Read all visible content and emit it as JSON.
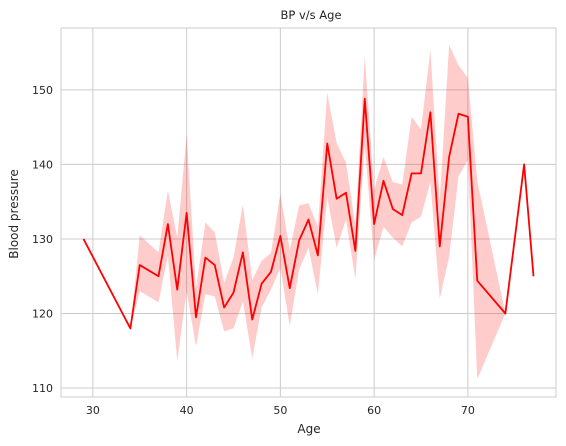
{
  "chart_data": {
    "type": "line",
    "title": "BP v/s Age",
    "xlabel": "Age",
    "ylabel": "Blood pressure",
    "xlim": [
      26.6,
      79.4
    ],
    "ylim": [
      108.8,
      158.3
    ],
    "xticks": [
      30,
      40,
      50,
      60,
      70
    ],
    "yticks": [
      110,
      120,
      130,
      140,
      150
    ],
    "grid": true,
    "line_color": "#ff0000",
    "band_color": "#ff0000",
    "band_opacity": 0.2,
    "series": [
      {
        "x": [
          29,
          34,
          35,
          37,
          38,
          39,
          40,
          41,
          42,
          43,
          44,
          45,
          46,
          47,
          48,
          49,
          50,
          51,
          52,
          53,
          54,
          55,
          56,
          57,
          58,
          59,
          60,
          61,
          62,
          63,
          64,
          65,
          66,
          67,
          68,
          69,
          70,
          71,
          74,
          76,
          77
        ],
        "y": [
          130,
          118,
          126.5,
          125,
          132,
          123.2,
          133.5,
          119.5,
          127.5,
          126.5,
          120.8,
          122.8,
          128.2,
          119.2,
          124,
          125.6,
          130.4,
          123.4,
          129.8,
          132.6,
          127.8,
          142.8,
          135.4,
          136.2,
          128.4,
          148.8,
          132,
          137.8,
          134,
          133.2,
          138.8,
          138.8,
          147,
          129,
          141,
          146.8,
          146.4,
          124.4,
          120,
          140,
          125
        ],
        "ci_low": [
          130,
          118,
          123,
          121.5,
          127.8,
          113.6,
          123,
          115.6,
          122.6,
          122.3,
          117.6,
          118,
          121.6,
          114,
          120.8,
          123.2,
          126.1,
          118.3,
          125.9,
          128.8,
          122.6,
          135.6,
          128.8,
          132.6,
          124.6,
          142.6,
          127.2,
          131.6,
          130.2,
          129,
          132.2,
          133,
          137.6,
          122,
          127.6,
          138.4,
          140.6,
          111.2,
          120,
          140,
          125
        ],
        "ci_high": [
          130,
          118,
          130.5,
          128.2,
          136.5,
          130.2,
          144,
          123.4,
          132.2,
          130.9,
          124.1,
          127.5,
          134.6,
          124.5,
          127.1,
          128.1,
          136.1,
          128.5,
          134.5,
          134.8,
          131.6,
          149.6,
          142.9,
          140.2,
          131.8,
          154.6,
          136.6,
          141,
          137.6,
          137.3,
          146.4,
          144.7,
          155.4,
          135.3,
          156,
          153.3,
          151.6,
          137.8,
          120,
          140,
          125
        ]
      }
    ]
  }
}
